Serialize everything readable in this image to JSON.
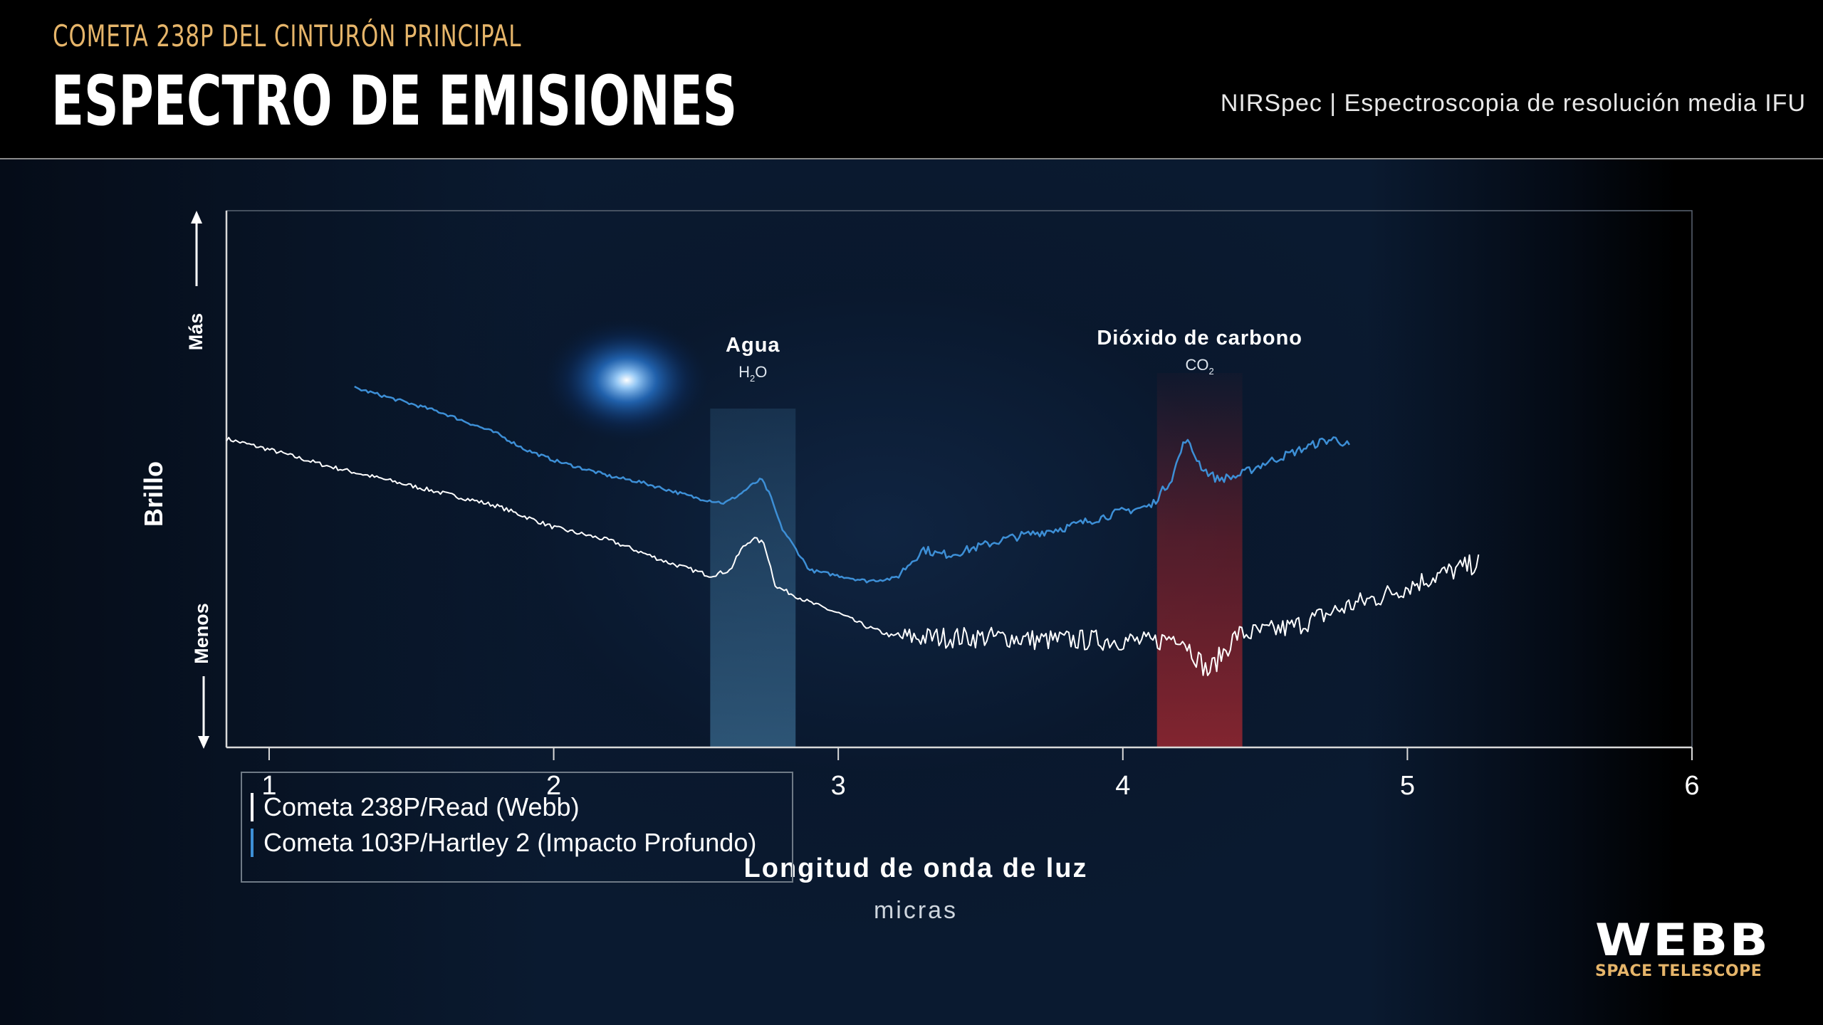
{
  "header": {
    "supertitle": "COMETA 238P DEL CINTURÓN PRINCIPAL",
    "title": "ESPECTRO DE EMISIONES",
    "instrument": "NIRSpec | Espectroscopia de resolución media IFU"
  },
  "colors": {
    "supertitle": "#e6b56a",
    "series_webb": "#ffffff",
    "series_deep_impact": "#3d8fd6",
    "water_band": "#3a6f96",
    "co2_band": "#8c2028",
    "axis": "#d9d9d9"
  },
  "logo": {
    "word": "WEBB",
    "sub": "SPACE TELESCOPE",
    "sub_color": "#e6b56a"
  },
  "chart_data": {
    "type": "line",
    "xlabel": "Longitud de onda de luz",
    "xunit": "micras",
    "ylabel": "Brillo",
    "y_high_label": "Más",
    "y_low_label": "Menos",
    "xlim": [
      0.85,
      6.0
    ],
    "ylim": [
      0,
      1
    ],
    "xticks": [
      1,
      2,
      3,
      4,
      5,
      6
    ],
    "grid": false,
    "legend_position": "bottom-left",
    "bands": [
      {
        "label": "Agua",
        "formula": "H",
        "formula_sub": "2",
        "formula_tail": "O",
        "x_range": [
          2.55,
          2.85
        ],
        "color_key": "water_band"
      },
      {
        "label": "Dióxido de carbono",
        "formula": "CO",
        "formula_sub": "2",
        "formula_tail": "",
        "x_range": [
          4.12,
          4.42
        ],
        "color_key": "co2_band"
      }
    ],
    "series": [
      {
        "name": "Cometa 238P/Read (Webb)",
        "color_key": "series_webb",
        "noise": [
          0.004,
          0.02
        ],
        "x": [
          0.85,
          1.0,
          1.2,
          1.4,
          1.6,
          1.8,
          2.0,
          2.2,
          2.4,
          2.55,
          2.62,
          2.66,
          2.7,
          2.74,
          2.78,
          2.82,
          2.9,
          3.0,
          3.1,
          3.2,
          3.3,
          3.4,
          3.5,
          3.6,
          3.7,
          3.8,
          3.9,
          4.0,
          4.1,
          4.2,
          4.3,
          4.4,
          4.5,
          4.6,
          4.7,
          4.8,
          4.9,
          5.0,
          5.1,
          5.2,
          5.25
        ],
        "y": [
          0.575,
          0.555,
          0.525,
          0.5,
          0.475,
          0.45,
          0.41,
          0.385,
          0.345,
          0.32,
          0.33,
          0.37,
          0.39,
          0.38,
          0.3,
          0.29,
          0.27,
          0.25,
          0.225,
          0.205,
          0.205,
          0.205,
          0.205,
          0.205,
          0.2,
          0.2,
          0.2,
          0.2,
          0.195,
          0.21,
          0.14,
          0.21,
          0.215,
          0.225,
          0.245,
          0.265,
          0.28,
          0.3,
          0.32,
          0.335,
          0.345
        ]
      },
      {
        "name": "Cometa 103P/Hartley 2 (Impacto Profundo)",
        "color_key": "series_deep_impact",
        "noise": [
          0.003,
          0.008
        ],
        "x": [
          1.3,
          1.4,
          1.5,
          1.6,
          1.7,
          1.8,
          1.9,
          2.0,
          2.1,
          2.2,
          2.3,
          2.4,
          2.5,
          2.6,
          2.65,
          2.7,
          2.73,
          2.76,
          2.8,
          2.85,
          2.9,
          3.0,
          3.1,
          3.2,
          3.3,
          3.35,
          3.4,
          3.5,
          3.6,
          3.7,
          3.8,
          3.9,
          4.0,
          4.1,
          4.17,
          4.22,
          4.28,
          4.33,
          4.4,
          4.5,
          4.6,
          4.7,
          4.75,
          4.8
        ],
        "y": [
          0.67,
          0.655,
          0.64,
          0.625,
          0.605,
          0.585,
          0.555,
          0.535,
          0.52,
          0.505,
          0.495,
          0.48,
          0.465,
          0.455,
          0.47,
          0.49,
          0.5,
          0.47,
          0.41,
          0.37,
          0.33,
          0.32,
          0.31,
          0.315,
          0.37,
          0.36,
          0.36,
          0.375,
          0.39,
          0.4,
          0.41,
          0.425,
          0.44,
          0.45,
          0.5,
          0.575,
          0.52,
          0.5,
          0.505,
          0.53,
          0.55,
          0.57,
          0.575,
          0.56
        ]
      }
    ]
  }
}
